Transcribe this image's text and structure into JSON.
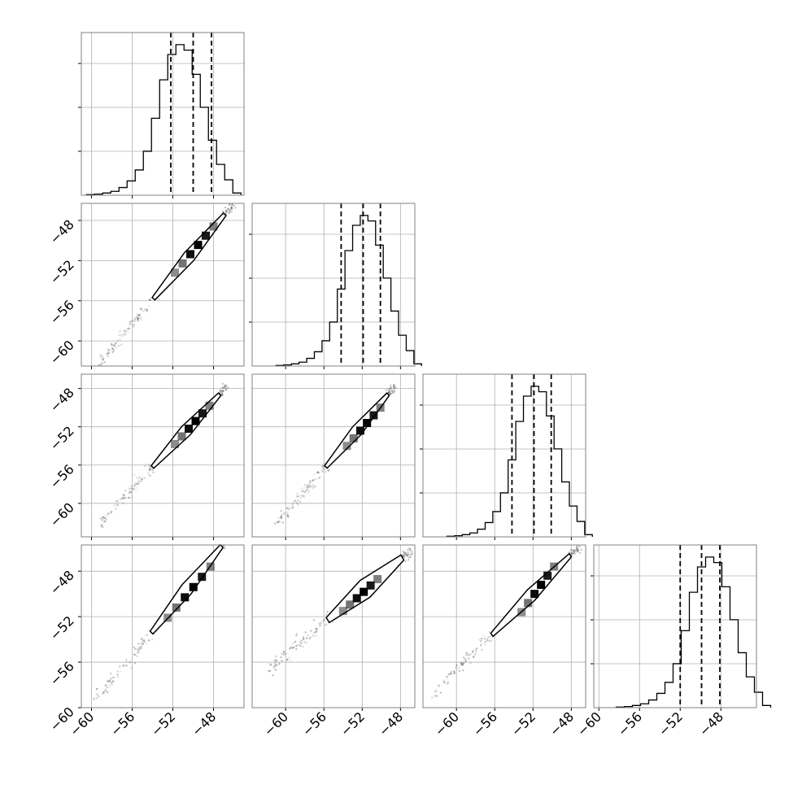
{
  "colors": {
    "ink": "#000000",
    "grid": "#b0b0b0",
    "frame": "#808080",
    "density": "#555555"
  },
  "chart_data": [
    {
      "panel": "1,1",
      "type": "histogram",
      "grid": true,
      "xlim": [
        -61,
        -45
      ],
      "ylim": [
        0,
        14.8
      ],
      "bin_edges": [
        -60.5,
        -59.7,
        -58.9,
        -58.1,
        -57.3,
        -56.5,
        -55.7,
        -54.9,
        -54.1,
        -53.3,
        -52.5,
        -51.7,
        -50.9,
        -50.1,
        -49.3,
        -48.5,
        -47.7,
        -46.9,
        -46.1,
        -45.3
      ],
      "counts": [
        0.05,
        0.1,
        0.2,
        0.35,
        0.7,
        1.3,
        2.3,
        4.0,
        7.0,
        10.5,
        12.8,
        13.7,
        13.2,
        11.0,
        8.0,
        5.0,
        2.8,
        1.4,
        0.2
      ],
      "quantile_lines": [
        -52.2,
        -50.0,
        -48.2
      ]
    },
    {
      "panel": "2,1",
      "type": "scatter-density",
      "grid": true,
      "xlim": [
        -61,
        -45
      ],
      "ylim": [
        -62.5,
        -46.3
      ],
      "yticks": [
        -60,
        -56,
        -52,
        -48
      ],
      "contour_start": [
        -53.9,
        -55.8
      ],
      "contour_end": [
        -46.9,
        -47.4
      ],
      "contour_half_width": 0.6,
      "core_start": [
        -51.8,
        -53.2
      ],
      "core_end": [
        -48.0,
        -48.6
      ],
      "core_cells": 6
    },
    {
      "panel": "2,2",
      "type": "histogram",
      "grid": true,
      "xlim": [
        -63.5,
        -46.5
      ],
      "ylim": [
        0,
        14.8
      ],
      "bin_edges": [
        -61.0,
        -60.2,
        -59.4,
        -58.6,
        -57.8,
        -57.0,
        -56.2,
        -55.4,
        -54.6,
        -53.8,
        -53.0,
        -52.2,
        -51.4,
        -50.6,
        -49.8,
        -49.0,
        -48.2,
        -47.4,
        -46.6,
        -45.8
      ],
      "counts": [
        0.05,
        0.1,
        0.2,
        0.35,
        0.7,
        1.3,
        2.3,
        4.0,
        7.0,
        10.5,
        12.8,
        13.7,
        13.2,
        11.0,
        8.0,
        5.0,
        2.8,
        1.4,
        0.2
      ],
      "quantile_lines": [
        -54.2,
        -51.9,
        -50.1
      ]
    },
    {
      "panel": "3,1",
      "type": "scatter-density",
      "grid": true,
      "xlim": [
        -61,
        -45
      ],
      "ylim": [
        -63.5,
        -46.5
      ],
      "yticks": [
        -60,
        -56,
        -52,
        -48
      ],
      "contour_start": [
        -54.0,
        -56.2
      ],
      "contour_end": [
        -47.4,
        -48.6
      ],
      "contour_half_width": 0.6,
      "core_start": [
        -51.8,
        -53.8
      ],
      "core_end": [
        -48.4,
        -49.8
      ],
      "core_cells": 6
    },
    {
      "panel": "3,2",
      "type": "scatter-density",
      "grid": true,
      "xlim": [
        -63.5,
        -46.5
      ],
      "ylim": [
        -63.5,
        -46.5
      ],
      "contour_start": [
        -55.8,
        -56.2
      ],
      "contour_end": [
        -49.3,
        -48.6
      ],
      "contour_half_width": 0.6,
      "core_start": [
        -53.6,
        -54.0
      ],
      "core_end": [
        -50.1,
        -50.0
      ],
      "core_cells": 6
    },
    {
      "panel": "3,3",
      "type": "histogram",
      "grid": true,
      "xlim": [
        -63.5,
        -46.5
      ],
      "ylim": [
        0,
        14.8
      ],
      "bin_edges": [
        -61.0,
        -60.2,
        -59.4,
        -58.6,
        -57.8,
        -57.0,
        -56.2,
        -55.4,
        -54.6,
        -53.8,
        -53.0,
        -52.2,
        -51.4,
        -50.6,
        -49.8,
        -49.0,
        -48.2,
        -47.4,
        -46.6,
        -45.8
      ],
      "counts": [
        0.05,
        0.1,
        0.2,
        0.35,
        0.7,
        1.3,
        2.3,
        4.0,
        7.0,
        10.5,
        12.8,
        13.7,
        13.2,
        11.0,
        8.0,
        5.0,
        2.8,
        1.4,
        0.2
      ],
      "quantile_lines": [
        -54.2,
        -51.9,
        -50.1
      ]
    },
    {
      "panel": "4,1",
      "type": "scatter-density",
      "grid": true,
      "xlim": [
        -61,
        -45
      ],
      "ylim": [
        -60,
        -45.7
      ],
      "yticks": [
        -60,
        -56,
        -52,
        -48
      ],
      "xticks": [
        -60,
        -56,
        -52,
        -48
      ],
      "xtick_labels": [
        "−60",
        "−56",
        "−52",
        "−48"
      ],
      "contour_start": [
        -54.1,
        -53.4
      ],
      "contour_end": [
        -47.2,
        -45.8
      ],
      "contour_half_width": 0.6,
      "core_start": [
        -52.5,
        -52.1
      ],
      "core_end": [
        -48.3,
        -47.6
      ],
      "core_cells": 6
    },
    {
      "panel": "4,2",
      "type": "scatter-density",
      "grid": true,
      "xlim": [
        -63.5,
        -46.5
      ],
      "ylim": [
        -60,
        -45.7
      ],
      "xticks": [
        -60,
        -56,
        -52,
        -48
      ],
      "xtick_labels": [
        "−60",
        "−56",
        "−52",
        "−48"
      ],
      "contour_start": [
        -55.6,
        -52.3
      ],
      "contour_end": [
        -47.8,
        -46.8
      ],
      "contour_half_width": 0.9,
      "core_start": [
        -54.0,
        -51.5
      ],
      "core_end": [
        -50.4,
        -48.7
      ],
      "core_cells": 6
    },
    {
      "panel": "4,3",
      "type": "scatter-density",
      "grid": true,
      "xlim": [
        -63.5,
        -46.5
      ],
      "ylim": [
        -60,
        -45.7
      ],
      "xticks": [
        -60,
        -56,
        -52,
        -48
      ],
      "xtick_labels": [
        "−60",
        "−56",
        "−52",
        "−48"
      ],
      "contour_start": [
        -56.3,
        -53.6
      ],
      "contour_end": [
        -48.1,
        -46.6
      ],
      "contour_half_width": 0.6,
      "core_start": [
        -53.2,
        -51.6
      ],
      "core_end": [
        -49.8,
        -47.6
      ],
      "core_cells": 6
    },
    {
      "panel": "4,4",
      "type": "histogram",
      "grid": true,
      "xlim": [
        -60.5,
        -44.5
      ],
      "ylim": [
        0,
        14.8
      ],
      "bin_edges": [
        -58.3,
        -57.5,
        -56.7,
        -55.9,
        -55.1,
        -54.3,
        -53.5,
        -52.7,
        -51.9,
        -51.1,
        -50.3,
        -49.5,
        -48.7,
        -47.9,
        -47.1,
        -46.3,
        -45.5,
        -44.7,
        -43.9,
        -43.1
      ],
      "counts": [
        0.05,
        0.1,
        0.2,
        0.35,
        0.7,
        1.3,
        2.3,
        4.0,
        7.0,
        10.5,
        12.8,
        13.7,
        13.2,
        11.0,
        8.0,
        5.0,
        2.8,
        1.4,
        0.2
      ],
      "quantile_lines": [
        -52.0,
        -49.9,
        -48.1
      ],
      "xticks": [
        -60,
        -56,
        -52,
        -48
      ],
      "xtick_labels": [
        "−60",
        "−56",
        "−52",
        "−48"
      ]
    }
  ],
  "y_tick_labels": {
    "-60": "−60",
    "-56": "−56",
    "-52": "−52",
    "-48": "−48"
  }
}
